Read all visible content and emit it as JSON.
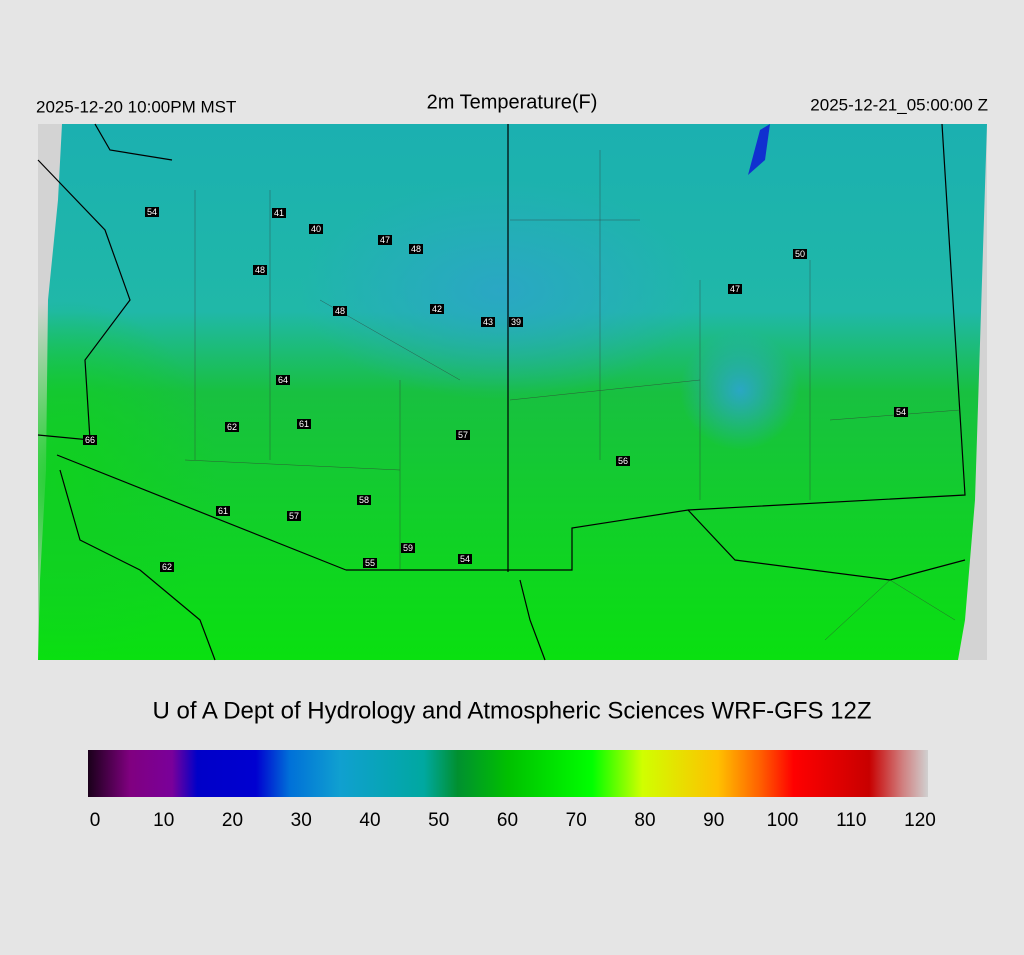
{
  "header": {
    "left": "2025-12-20 10:00PM MST",
    "title": "2m Temperature(F)",
    "right": "2025-12-21_05:00:00 Z"
  },
  "stations": [
    54,
    41,
    40,
    47,
    48,
    48,
    48,
    42,
    43,
    39,
    50,
    47,
    64,
    62,
    61,
    57,
    66,
    56,
    54,
    58,
    61,
    57,
    59,
    55,
    54,
    62
  ],
  "credit": "U of A Dept of Hydrology and Atmospheric Sciences WRF-GFS 12Z",
  "colorbar": {
    "range": [
      0,
      120
    ],
    "ticks": [
      0,
      10,
      20,
      30,
      40,
      50,
      60,
      70,
      80,
      90,
      100,
      110,
      120
    ]
  }
}
